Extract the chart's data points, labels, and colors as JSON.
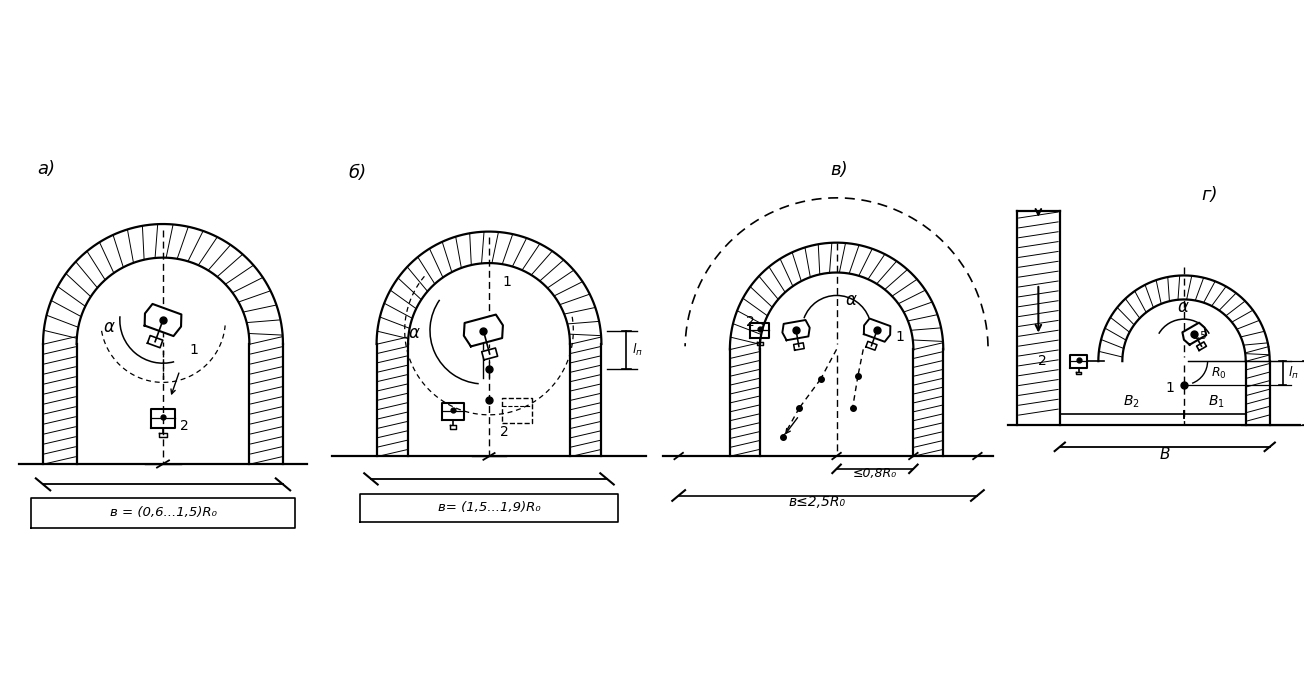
{
  "bg_color": "#ffffff",
  "panel_labels": [
    "а)",
    "б)",
    "в)",
    "г)"
  ],
  "formula_a": "в = (0,6...1,5)R₀",
  "formula_b": "в= (1,5...1,9)R₀",
  "formula_v1": "≤0,8R₀",
  "formula_v2": "в≤2,5R₀",
  "label_alpha": "α",
  "label_1": "1",
  "label_2": "2"
}
